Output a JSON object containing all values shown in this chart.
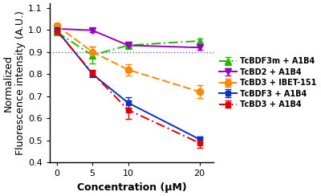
{
  "x": [
    0,
    5,
    10,
    20
  ],
  "series": [
    {
      "label": "TcBDF3m + A1B4",
      "color": "#22bb00",
      "y": [
        0.99,
        0.885,
        0.93,
        0.95
      ],
      "yerr": [
        0.008,
        0.038,
        0.015,
        0.01
      ],
      "linestyle": "-.",
      "marker": "^",
      "markersize": 6,
      "dashes": [
        6,
        2,
        1,
        2
      ]
    },
    {
      "label": "TcBD2 + A1B4",
      "color": "#9900bb",
      "y": [
        1.005,
        0.998,
        0.93,
        0.92
      ],
      "yerr": [
        0.01,
        0.01,
        0.01,
        0.012
      ],
      "linestyle": "-",
      "marker": "v",
      "markersize": 6,
      "dashes": []
    },
    {
      "label": "TcBD3 + IBET-151",
      "color": "#ff8800",
      "y": [
        1.02,
        0.9,
        0.82,
        0.72
      ],
      "yerr": [
        0.01,
        0.025,
        0.025,
        0.03
      ],
      "linestyle": "--",
      "marker": "o",
      "markersize": 6,
      "dashes": [
        5,
        2
      ]
    },
    {
      "label": "TcBDF3 + A1B4",
      "color": "#0033cc",
      "y": [
        1.0,
        0.8,
        0.67,
        0.505
      ],
      "yerr": [
        0.008,
        0.015,
        0.025,
        0.013
      ],
      "linestyle": "-",
      "marker": "s",
      "markersize": 5,
      "dashes": []
    },
    {
      "label": "TcBD3 + A1B4",
      "color": "#dd0000",
      "y": [
        0.995,
        0.805,
        0.638,
        0.488
      ],
      "yerr": [
        0.008,
        0.015,
        0.042,
        0.02
      ],
      "linestyle": "-.",
      "marker": "s",
      "markersize": 5,
      "dashes": [
        6,
        2,
        1,
        2
      ]
    }
  ],
  "xlabel": "Concentration (μM)",
  "ylabel": "Normalized\nFluorescence intensity (A.U.)",
  "xlim": [
    -1,
    22
  ],
  "ylim": [
    0.4,
    1.12
  ],
  "yticks": [
    0.4,
    0.5,
    0.6,
    0.7,
    0.8,
    0.9,
    1.0,
    1.1
  ],
  "xticks": [
    0,
    5,
    10,
    20
  ],
  "hline_y": 0.9,
  "hline_color": "#6666cc",
  "background_color": "#ffffff",
  "legend_fontsize": 7.0,
  "axis_label_fontsize": 9,
  "axis_xlabel_fontsize": 9,
  "tick_fontsize": 8
}
